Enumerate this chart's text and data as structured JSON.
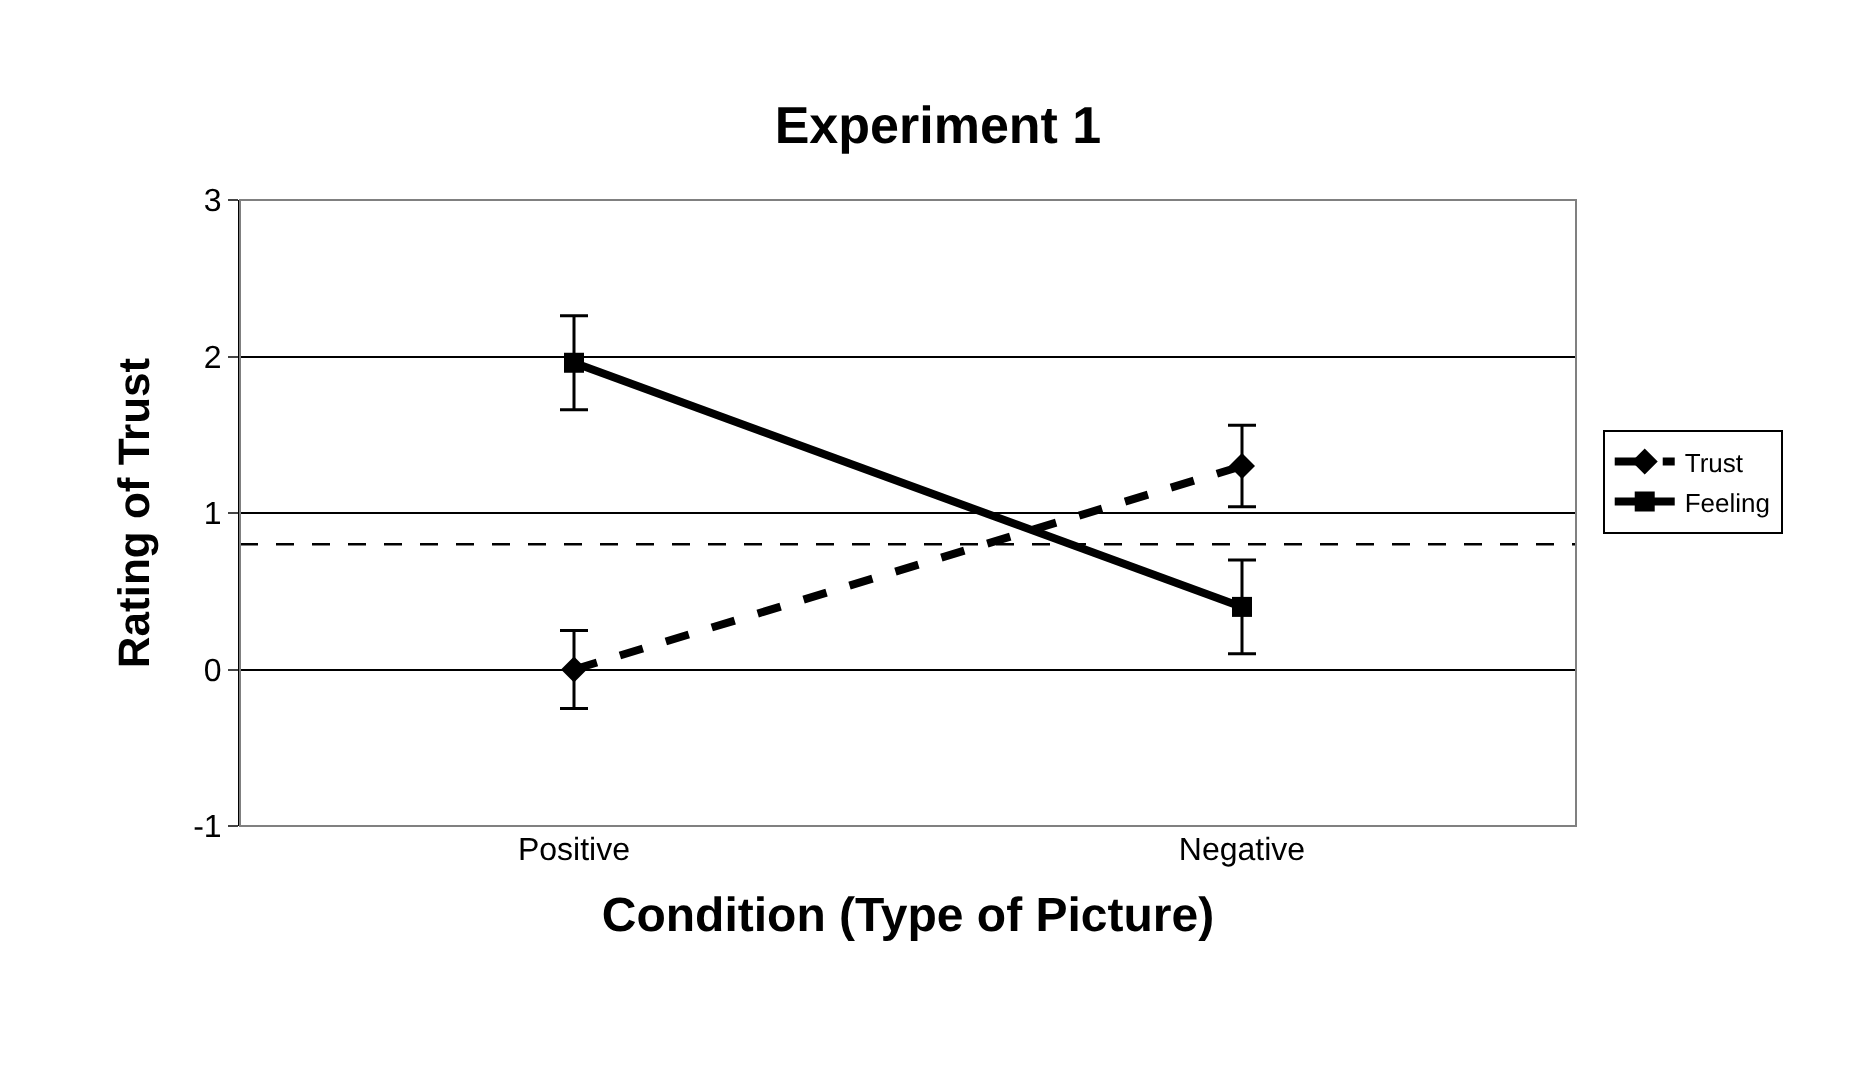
{
  "chart_data": {
    "type": "line",
    "title": "Experiment 1",
    "xlabel": "Condition (Type of Picture)",
    "ylabel": "Rating of Trust",
    "categories": [
      "Positive",
      "Negative"
    ],
    "series": [
      {
        "name": "Trust",
        "color": "#000000",
        "values": [
          0,
          1.3
        ],
        "errors": [
          0.25,
          0.26
        ],
        "line_style": "dashed",
        "marker": "diamond"
      },
      {
        "name": "Feeling",
        "color": "#000000",
        "values": [
          1.96,
          0.4
        ],
        "errors": [
          0.3,
          0.3
        ],
        "line_style": "solid",
        "marker": "square"
      }
    ],
    "ylim": [
      -1,
      3
    ],
    "yticks": [
      -1,
      0,
      1,
      2,
      3
    ],
    "grid": "y",
    "legend": "right",
    "ref_lines": [
      {
        "axis": "y",
        "value": 0.8,
        "line_style": "dashed",
        "color": "#000000"
      }
    ]
  }
}
